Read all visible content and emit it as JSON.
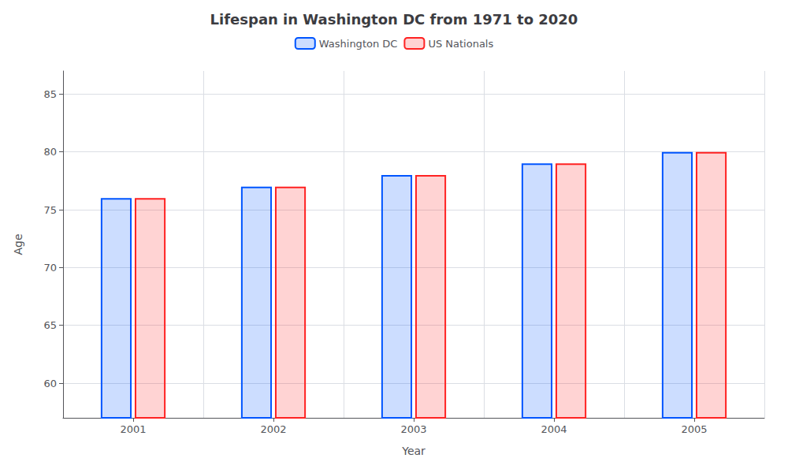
{
  "chart_data": {
    "type": "bar",
    "title": "Lifespan in Washington DC from 1971 to 2020",
    "xlabel": "Year",
    "ylabel": "Age",
    "categories": [
      "2001",
      "2002",
      "2003",
      "2004",
      "2005"
    ],
    "series": [
      {
        "name": "Washington DC",
        "color": "#0055ff",
        "values": [
          76.0,
          77.0,
          78.0,
          79.0,
          80.0
        ]
      },
      {
        "name": "US Nationals",
        "color": "#ff2222",
        "values": [
          76.0,
          77.0,
          78.0,
          79.0,
          80.0
        ]
      }
    ],
    "ylim": [
      57,
      87
    ],
    "yticks": [
      60,
      65,
      70,
      75,
      80,
      85
    ],
    "grid": true,
    "legend": "top"
  }
}
